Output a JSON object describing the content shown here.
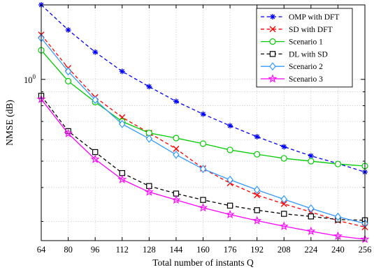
{
  "chart_data": {
    "type": "line",
    "xlabel": "Total number of instants Q",
    "ylabel": "NMSE (dB)",
    "x": [
      64,
      80,
      96,
      112,
      128,
      144,
      160,
      176,
      192,
      208,
      224,
      240,
      256
    ],
    "xlim": [
      64,
      256
    ],
    "ylim": [
      0.255,
      1.88
    ],
    "yscale": "log",
    "ytick_label": "10",
    "ytick_exponent": "0",
    "grid": true,
    "legend_position": "top-right",
    "series": [
      {
        "name": "OMP with DFT",
        "color": "#0000ff",
        "dash": "dashed",
        "marker": "asterisk",
        "values": [
          1.88,
          1.52,
          1.26,
          1.07,
          0.94,
          0.83,
          0.745,
          0.675,
          0.615,
          0.565,
          0.523,
          0.49,
          0.456
        ]
      },
      {
        "name": "SD with DFT",
        "color": "#ff0000",
        "dash": "dashed",
        "marker": "x",
        "values": [
          1.46,
          1.1,
          0.86,
          0.725,
          0.635,
          0.555,
          0.47,
          0.415,
          0.375,
          0.348,
          0.325,
          0.302,
          0.286
        ]
      },
      {
        "name": "Scenario 1",
        "color": "#00cc00",
        "dash": "solid",
        "marker": "circle",
        "values": [
          1.28,
          0.985,
          0.825,
          0.7,
          0.635,
          0.608,
          0.58,
          0.55,
          0.53,
          0.512,
          0.5,
          0.488,
          0.48
        ]
      },
      {
        "name": "DL with SD",
        "color": "#000000",
        "dash": "dashed",
        "marker": "square",
        "values": [
          0.87,
          0.645,
          0.54,
          0.452,
          0.405,
          0.38,
          0.36,
          0.343,
          0.33,
          0.32,
          0.313,
          0.305,
          0.303
        ]
      },
      {
        "name": "Scenario 2",
        "color": "#3399ff",
        "dash": "solid",
        "marker": "diamond",
        "values": [
          1.42,
          1.07,
          0.84,
          0.685,
          0.605,
          0.528,
          0.468,
          0.427,
          0.392,
          0.362,
          0.335,
          0.312,
          0.295
        ]
      },
      {
        "name": "Scenario 3",
        "color": "#ff00ff",
        "dash": "solid",
        "marker": "star",
        "values": [
          0.845,
          0.632,
          0.508,
          0.428,
          0.385,
          0.36,
          0.337,
          0.318,
          0.302,
          0.288,
          0.276,
          0.265,
          0.258
        ]
      }
    ]
  }
}
